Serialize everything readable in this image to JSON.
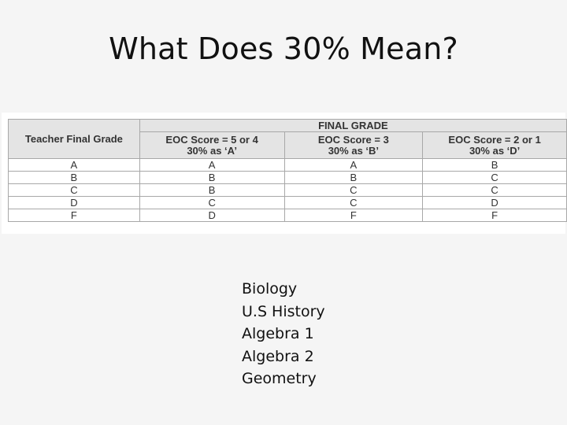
{
  "slide": {
    "title": "What Does 30% Mean?"
  },
  "table": {
    "row_header": "Teacher Final Grade",
    "group_header": "FINAL GRADE",
    "columns": [
      "EOC Score = 5 or 4\n30% as ‘A’",
      "EOC Score = 3\n30% as ‘B’",
      "EOC Score = 2 or 1\n30% as ‘D’"
    ],
    "rows": [
      [
        "A",
        "A",
        "A",
        "B"
      ],
      [
        "B",
        "B",
        "B",
        "C"
      ],
      [
        "C",
        "B",
        "C",
        "C"
      ],
      [
        "D",
        "C",
        "C",
        "D"
      ],
      [
        "F",
        "D",
        "F",
        "F"
      ]
    ]
  },
  "subjects": [
    "Biology",
    "U.S History",
    "Algebra 1",
    "Algebra 2",
    "Geometry"
  ],
  "colors": {
    "background": "#f5f5f5",
    "header_fill": "#e4e4e4",
    "border": "#a8a8a8"
  }
}
